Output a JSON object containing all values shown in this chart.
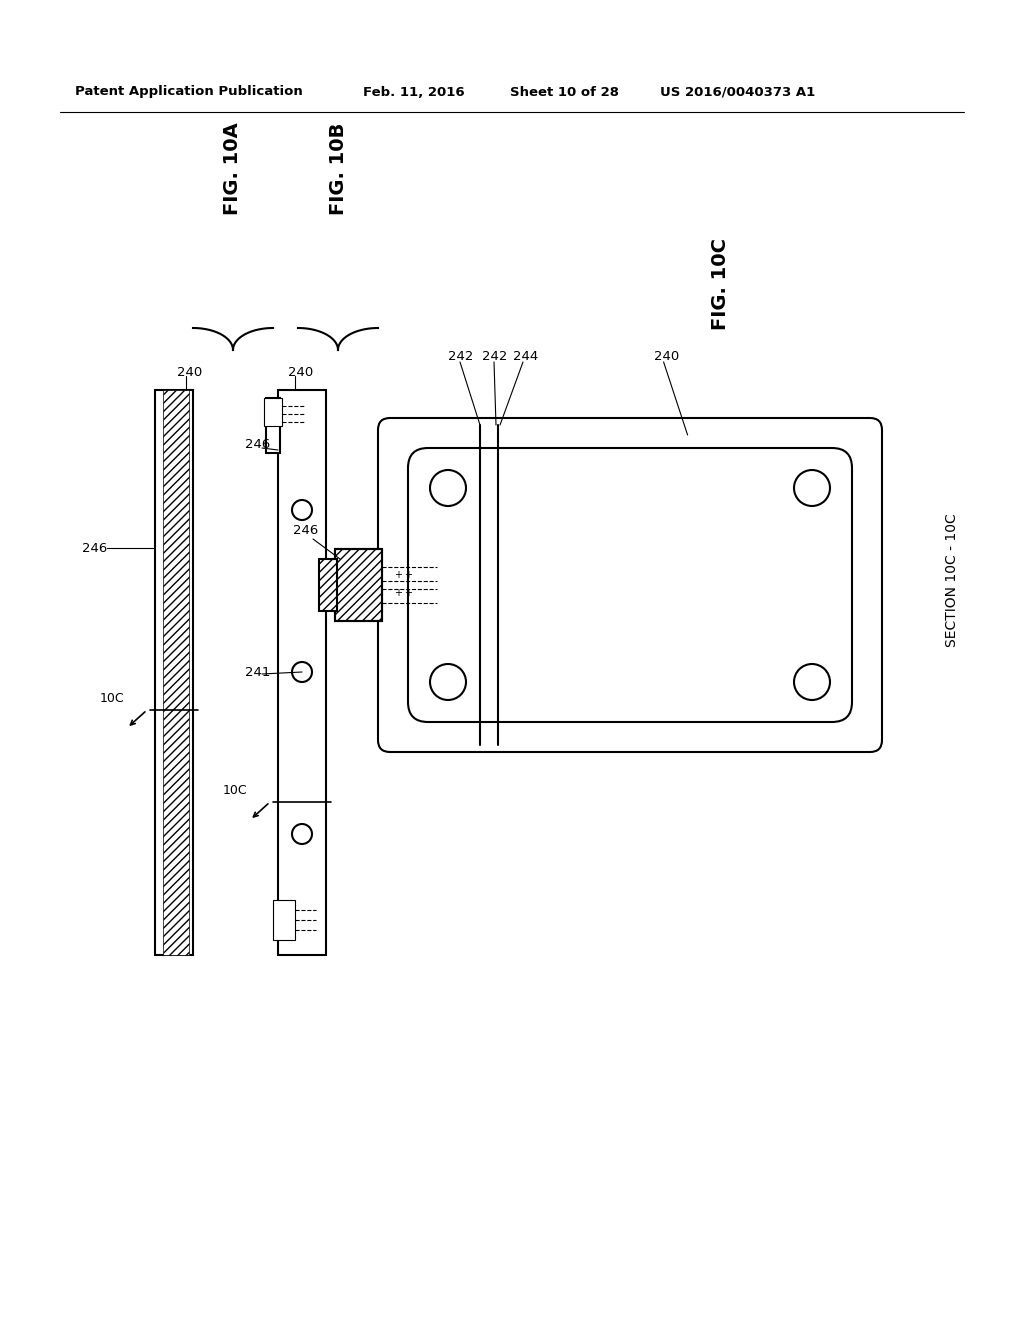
{
  "bg_color": "#ffffff",
  "line_color": "#000000",
  "header_text": "Patent Application Publication",
  "header_date": "Feb. 11, 2016",
  "header_sheet": "Sheet 10 of 28",
  "header_patent": "US 2016/0040373 A1",
  "fig10a_label": "FIG. 10A",
  "fig10b_label": "FIG. 10B",
  "fig10c_label": "FIG. 10C",
  "section_label": "SECTION 10C - 10C"
}
